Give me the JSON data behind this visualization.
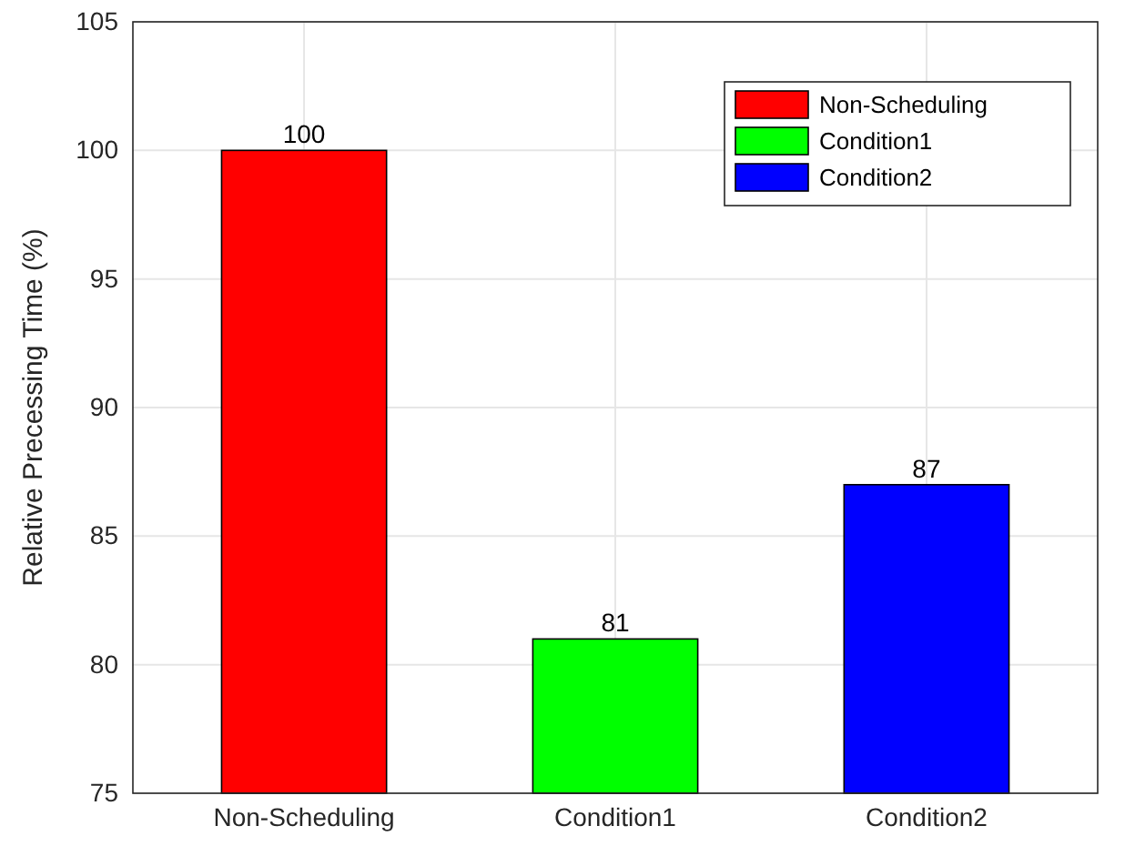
{
  "chart_data": {
    "type": "bar",
    "categories": [
      "Non-Scheduling",
      "Condition1",
      "Condition2"
    ],
    "series": [
      {
        "name": "Non-Scheduling",
        "color": "#ff0000",
        "values": [
          100,
          null,
          null
        ]
      },
      {
        "name": "Condition1",
        "color": "#00ff00",
        "values": [
          null,
          81,
          null
        ]
      },
      {
        "name": "Condition2",
        "color": "#0000ff",
        "values": [
          null,
          null,
          87
        ]
      }
    ],
    "ylabel": "Relative Precessing Time (%)",
    "ylim": [
      75,
      105
    ],
    "yticks": [
      75,
      80,
      85,
      90,
      95,
      100,
      105
    ],
    "grid": true,
    "legend": "top right",
    "data_labels": true
  }
}
